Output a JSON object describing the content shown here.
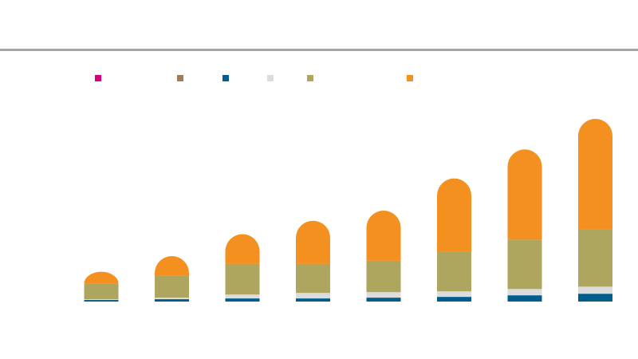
{
  "chart_data": {
    "type": "bar",
    "stacked": true,
    "title": "",
    "xlabel": "",
    "ylabel": "",
    "ylim": [
      0,
      235
    ],
    "grid": false,
    "legend_position": "top",
    "categories": [
      "",
      "",
      "",
      "",
      "",
      "",
      "",
      ""
    ],
    "series": [
      {
        "color": "#d6007f",
        "values": [
          0,
          0,
          0,
          0,
          0,
          0,
          0,
          0
        ]
      },
      {
        "color": "#a07d56",
        "values": [
          0,
          0,
          0,
          0,
          0,
          0,
          0,
          0
        ]
      },
      {
        "color": "#005d8c",
        "values": [
          2,
          3,
          4,
          4,
          5,
          6,
          8,
          10
        ]
      },
      {
        "color": "#dcdcdc",
        "values": [
          1,
          2,
          5,
          7,
          7,
          7,
          8,
          9
        ]
      },
      {
        "color": "#aea65f",
        "values": [
          20,
          28,
          39,
          37,
          40,
          51,
          63,
          73
        ]
      },
      {
        "color": "#f39020",
        "values": [
          15,
          25,
          38,
          55,
          64,
          93,
          115,
          141
        ]
      }
    ]
  }
}
